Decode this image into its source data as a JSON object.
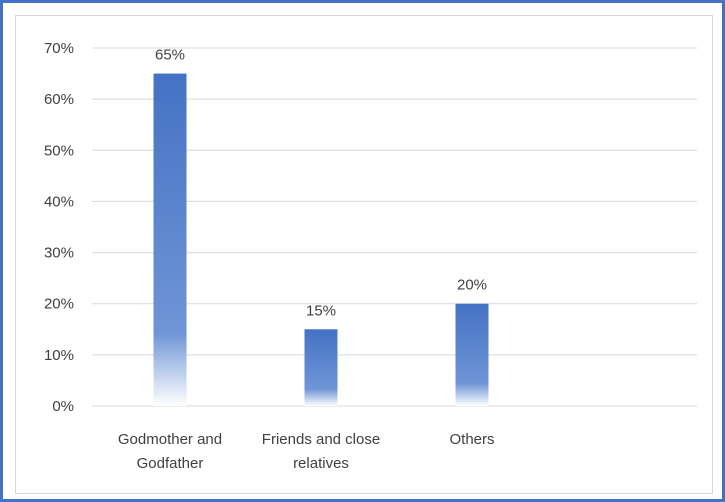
{
  "chart_data": {
    "type": "bar",
    "categories": [
      [
        "Godmother and",
        "Godfather"
      ],
      [
        "Friends and close",
        "relatives"
      ],
      [
        "Others"
      ]
    ],
    "values": [
      65,
      15,
      20
    ],
    "data_labels": [
      "65%",
      "15%",
      "20%"
    ],
    "y_ticks": [
      "0%",
      "10%",
      "20%",
      "30%",
      "40%",
      "50%",
      "60%",
      "70%"
    ],
    "ylim": [
      0,
      70
    ],
    "unit": "%",
    "grid": true,
    "legend": "none",
    "title": "",
    "xlabel": "",
    "ylabel": "",
    "colors": {
      "bar_top": "#4472C4",
      "bar_bottom": "#ffffff",
      "frame": "#4472C4",
      "grid": "#d9d9d9",
      "text": "#404040"
    }
  }
}
